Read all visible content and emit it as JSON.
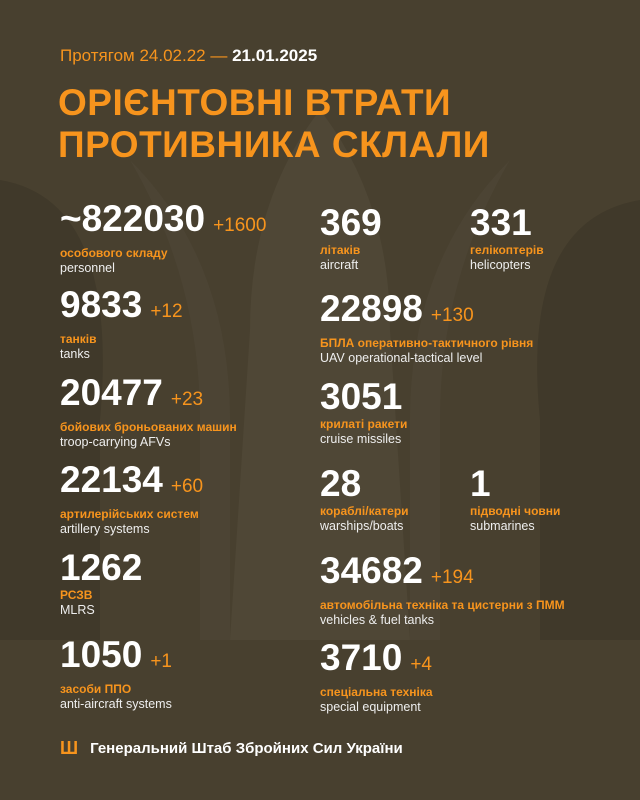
{
  "header": {
    "period_prefix": "Протягом 24.02.22 —",
    "period_end": "21.01.2025",
    "title_line1": "ОРІЄНТОВНІ ВТРАТИ",
    "title_line2": "ПРОТИВНИКА СКЛАЛИ"
  },
  "items": [
    {
      "value": "~822030",
      "delta": "+1600",
      "ua": "особового складу",
      "en": "personnel"
    },
    {
      "value": "9833",
      "delta": "+12",
      "ua": "танків",
      "en": "tanks"
    },
    {
      "value": "20477",
      "delta": "+23",
      "ua": "бойових броньованих машин",
      "en": "troop-carrying AFVs"
    },
    {
      "value": "22134",
      "delta": "+60",
      "ua": "артилерійських систем",
      "en": "artillery systems"
    },
    {
      "value": "1262",
      "delta": "",
      "ua": "РСЗВ",
      "en": "MLRS"
    },
    {
      "value": "1050",
      "delta": "+1",
      "ua": "засоби ППО",
      "en": "anti-aircraft systems"
    },
    {
      "value": "369",
      "delta": "",
      "ua": "літаків",
      "en": "aircraft"
    },
    {
      "value": "331",
      "delta": "",
      "ua": "гелікоптерів",
      "en": "helicopters"
    },
    {
      "value": "22898",
      "delta": "+130",
      "ua": "БПЛА оперативно-тактичного рівня",
      "en": "UAV operational-tactical level"
    },
    {
      "value": "3051",
      "delta": "",
      "ua": "крилаті ракети",
      "en": "cruise missiles"
    },
    {
      "value": "28",
      "delta": "",
      "ua": "кораблі/катери",
      "en": "warships/boats"
    },
    {
      "value": "1",
      "delta": "",
      "ua": "підводні човни",
      "en": "submarines"
    },
    {
      "value": "34682",
      "delta": "+194",
      "ua": "автомобільна техніка та цистерни з ПММ",
      "en": "vehicles & fuel tanks"
    },
    {
      "value": "3710",
      "delta": "+4",
      "ua": "спеціальна техніка",
      "en": "special equipment"
    }
  ],
  "footer": {
    "icon": "trident-icon",
    "org": "Генеральний Штаб Збройних Сил України"
  },
  "colors": {
    "background": "#48402f",
    "accent": "#f7941d",
    "text": "#ffffff"
  }
}
